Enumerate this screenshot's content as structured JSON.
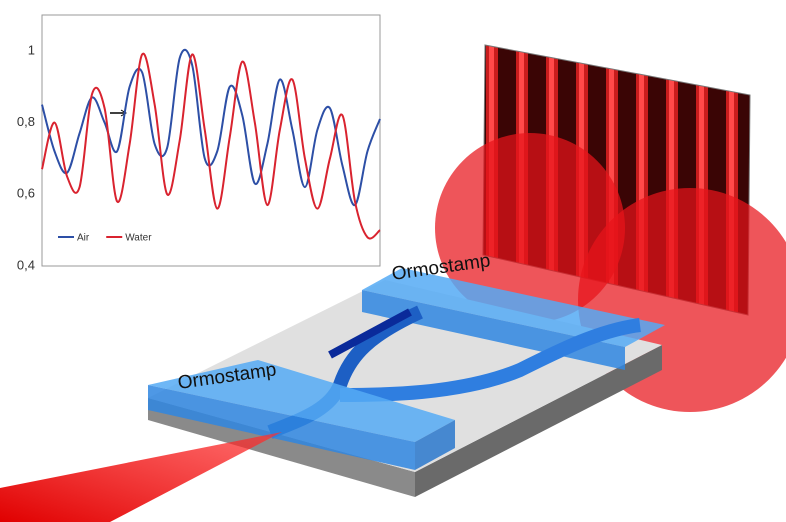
{
  "chart_data": {
    "type": "line",
    "categories": [
      null,
      null,
      null,
      null,
      null,
      null,
      null,
      null,
      null,
      null,
      null,
      null,
      null,
      null,
      null,
      null,
      null,
      null,
      null,
      null,
      null,
      null,
      null,
      null,
      null,
      null,
      null,
      null
    ],
    "series": [
      {
        "name": "Air",
        "color": "#2d4fa6",
        "values": [
          0.85,
          0.72,
          0.66,
          0.77,
          0.87,
          0.8,
          0.72,
          0.9,
          0.94,
          0.74,
          0.73,
          0.98,
          0.96,
          0.7,
          0.72,
          0.9,
          0.82,
          0.63,
          0.74,
          0.92,
          0.78,
          0.62,
          0.78,
          0.84,
          0.68,
          0.57,
          0.72,
          0.81
        ]
      },
      {
        "name": "Water",
        "color": "#d9232f",
        "values": [
          0.67,
          0.8,
          0.65,
          0.62,
          0.88,
          0.84,
          0.58,
          0.74,
          0.99,
          0.85,
          0.6,
          0.75,
          0.99,
          0.78,
          0.56,
          0.76,
          0.97,
          0.8,
          0.57,
          0.78,
          0.92,
          0.7,
          0.56,
          0.7,
          0.82,
          0.58,
          0.48,
          0.5
        ]
      }
    ],
    "ylim": [
      0.4,
      1.1
    ],
    "yticks": [
      {
        "value": 0.4,
        "label": "0,4"
      },
      {
        "value": 0.6,
        "label": "0,6"
      },
      {
        "value": 0.8,
        "label": "0,8"
      },
      1
    ]
  },
  "labels": [
    "Ormostamp",
    "Ormostamp"
  ]
}
